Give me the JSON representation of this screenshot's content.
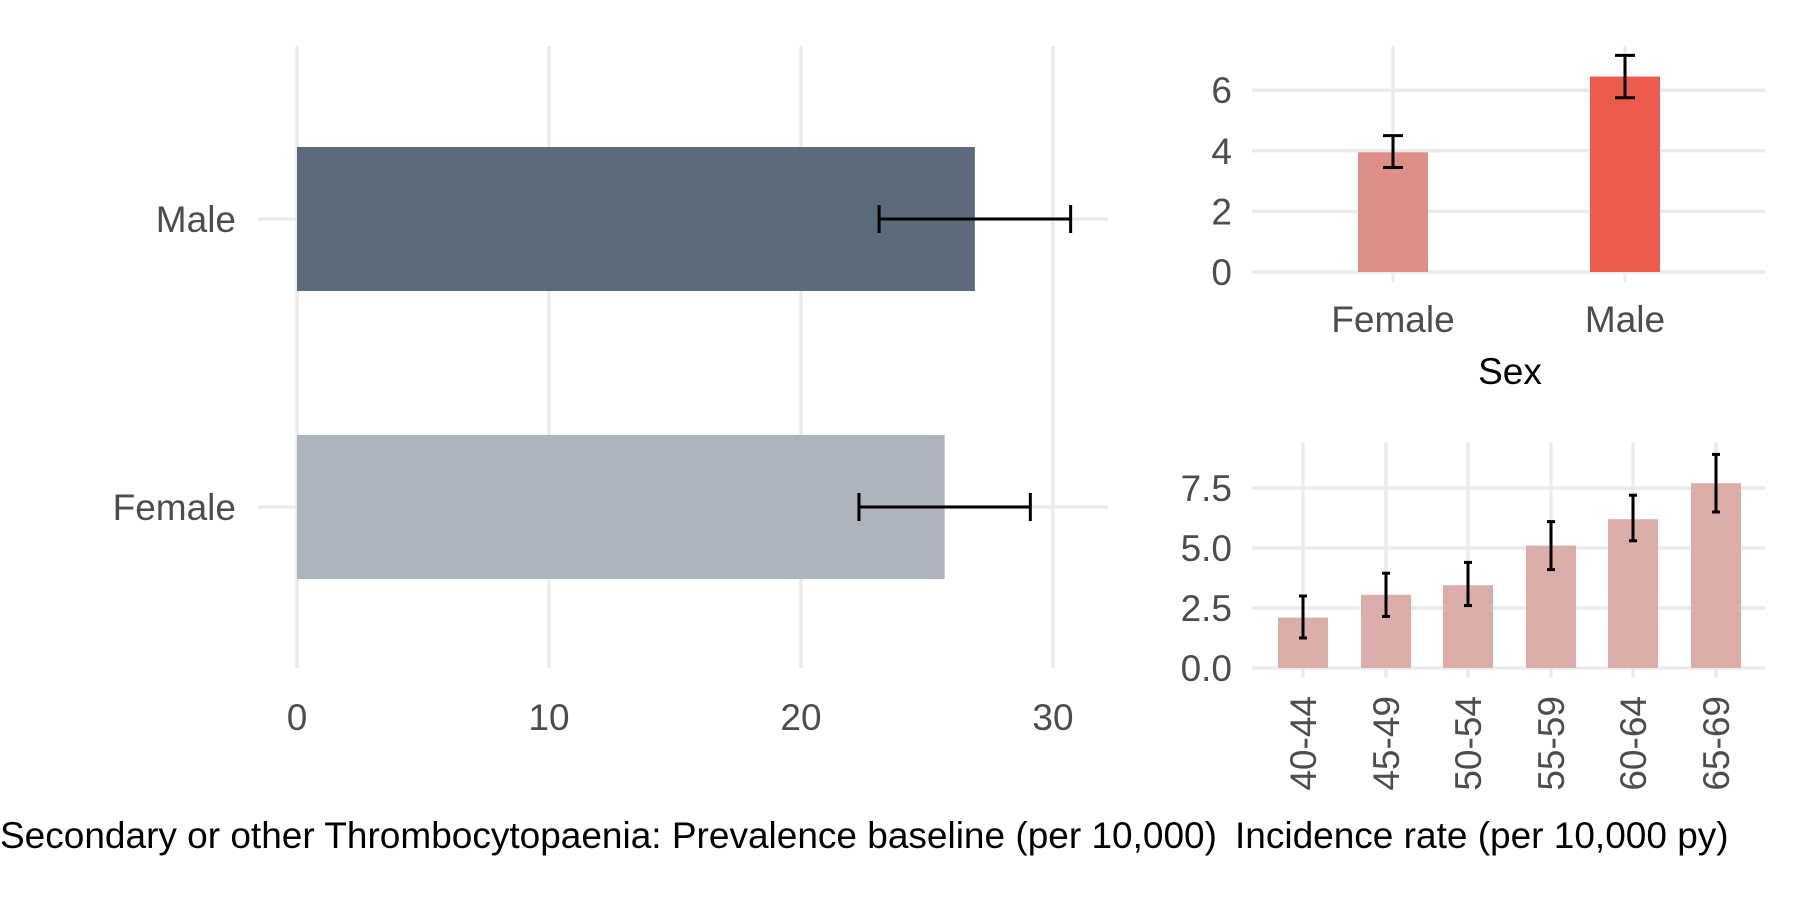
{
  "chart_data": [
    {
      "type": "bar",
      "orientation": "horizontal",
      "categories": [
        "Male",
        "Female"
      ],
      "values": [
        26.9,
        25.7
      ],
      "error_low": [
        23.1,
        22.3
      ],
      "error_high": [
        30.7,
        29.1
      ],
      "colors": [
        "#5c6b7b",
        "#adb4be"
      ],
      "xlabel": "Secondary or other Thrombocytopaenia: Prevalence baseline (per 10,000)",
      "ylabel": "",
      "xlim": [
        0,
        32
      ],
      "xticks": [
        0,
        10,
        20,
        30
      ],
      "grid": true
    },
    {
      "type": "bar",
      "categories": [
        "Female",
        "Male"
      ],
      "values": [
        3.95,
        6.45
      ],
      "error_low": [
        3.45,
        5.75
      ],
      "error_high": [
        4.5,
        7.15
      ],
      "colors": [
        "#de8f87",
        "#ec5b4b"
      ],
      "xlabel": "Sex",
      "ylabel": "",
      "ylim": [
        0,
        7.2
      ],
      "yticks": [
        0,
        2,
        4,
        6
      ],
      "grid": true
    },
    {
      "type": "bar",
      "categories": [
        "40-44",
        "45-49",
        "50-54",
        "55-59",
        "60-64",
        "65-69"
      ],
      "values": [
        2.1,
        3.05,
        3.45,
        5.1,
        6.2,
        7.7
      ],
      "error_low": [
        1.25,
        2.15,
        2.6,
        4.1,
        5.3,
        6.5
      ],
      "error_high": [
        3.0,
        3.95,
        4.4,
        6.1,
        7.2,
        8.9
      ],
      "colors": [
        "#dcaea9"
      ],
      "xlabel": "Incidence rate (per 10,000 py)",
      "ylabel": "",
      "ylim": [
        0,
        9.0
      ],
      "yticks": [
        "0.0",
        "2.5",
        "5.0",
        "7.5"
      ],
      "grid": true
    }
  ]
}
